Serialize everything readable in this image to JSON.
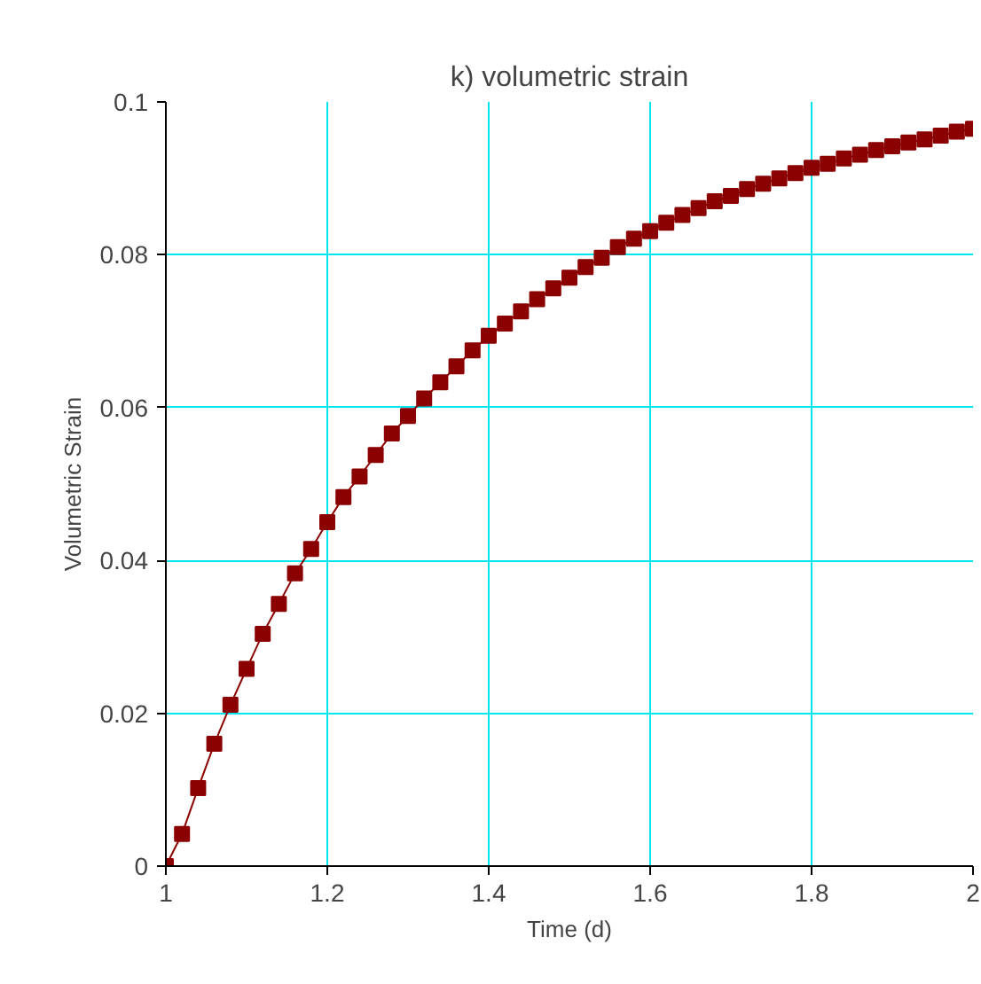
{
  "chart_data": {
    "type": "line",
    "title": "k) volumetric strain",
    "xlabel": "Time (d)",
    "ylabel": "Volumetric Strain",
    "x": [
      1.0,
      1.02,
      1.04,
      1.06,
      1.08,
      1.1,
      1.12,
      1.14,
      1.16,
      1.18,
      1.2,
      1.22,
      1.24,
      1.26,
      1.28,
      1.3,
      1.32,
      1.34,
      1.36,
      1.38,
      1.4,
      1.42,
      1.44,
      1.46,
      1.48,
      1.5,
      1.52,
      1.54,
      1.56,
      1.58,
      1.6,
      1.62,
      1.64,
      1.66,
      1.68,
      1.7,
      1.72,
      1.74,
      1.76,
      1.78,
      1.8,
      1.82,
      1.84,
      1.86,
      1.88,
      1.9,
      1.92,
      1.94,
      1.96,
      1.98,
      2.0
    ],
    "series": [
      {
        "color": "#8b0000",
        "values": [
          0,
          0.0042,
          0.0102,
          0.016,
          0.0211,
          0.0258,
          0.0304,
          0.0343,
          0.0383,
          0.0415,
          0.045,
          0.0483,
          0.051,
          0.0538,
          0.0566,
          0.0589,
          0.0612,
          0.0633,
          0.0654,
          0.0675,
          0.0694,
          0.071,
          0.0726,
          0.0742,
          0.0756,
          0.077,
          0.0784,
          0.0796,
          0.081,
          0.0821,
          0.0831,
          0.0842,
          0.0852,
          0.0861,
          0.087,
          0.0877,
          0.0886,
          0.0893,
          0.09,
          0.0907,
          0.0914,
          0.0919,
          0.0926,
          0.0931,
          0.0937,
          0.0942,
          0.0947,
          0.0951,
          0.0956,
          0.0961,
          0.0965
        ]
      }
    ],
    "xlim": [
      1,
      2
    ],
    "ylim": [
      0,
      0.1
    ],
    "xticks": [
      1,
      1.2,
      1.4,
      1.6,
      1.8,
      2
    ],
    "yticks": [
      0,
      0.02,
      0.04,
      0.06,
      0.08,
      0.1
    ],
    "grid": true,
    "marker": "square",
    "line_style": "solid"
  }
}
